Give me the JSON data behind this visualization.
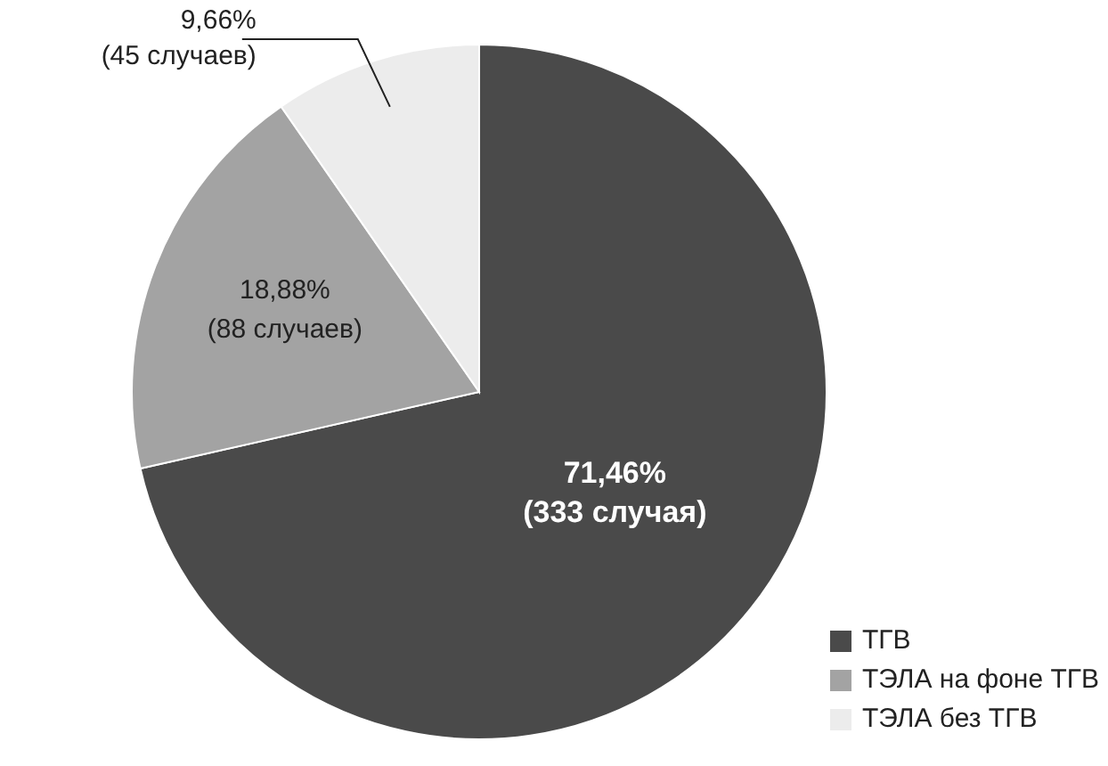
{
  "chart_data": {
    "type": "pie",
    "categories": [
      "ТГВ",
      "ТЭЛА на фоне ТГВ",
      "ТЭЛА без ТГВ"
    ],
    "values": [
      333,
      88,
      45
    ],
    "colors": [
      "#4a4a4a",
      "#a3a3a3",
      "#ececec"
    ],
    "value_labels": [
      "71,46%\n(333 случая)",
      "18,88%\n(88 случаев)",
      "9,66%\n(45 случаев)"
    ],
    "legend": "bottom right"
  }
}
